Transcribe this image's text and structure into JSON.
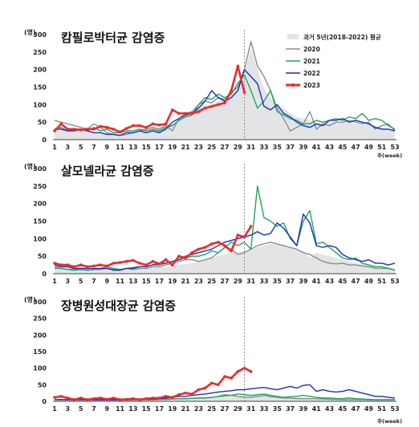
{
  "figure": {
    "x_axis_unit": "주(week)",
    "legend": {
      "baseline": "과거 5년(2018-2022) 평균",
      "s2020": "2020",
      "s2021": "2021",
      "s2022": "2022",
      "s2023": "2023"
    }
  },
  "chart_data": [
    {
      "type": "line",
      "title": "캄필로박터균 감염증",
      "ylabel": "(명)",
      "ylim": [
        0,
        300
      ],
      "yticks": [
        0,
        50,
        100,
        150,
        200,
        250,
        300
      ],
      "xticks": [
        1,
        3,
        5,
        7,
        9,
        11,
        13,
        15,
        17,
        19,
        21,
        23,
        25,
        27,
        29,
        31,
        33,
        35,
        37,
        39,
        41,
        43,
        45,
        47,
        49,
        51,
        53
      ],
      "current_week_marker": 30,
      "legend_position": "top-right",
      "colors": {
        "baseline": "#e3e4e6",
        "s2020": "#8c8c8c",
        "s2021": "#1fa65a",
        "s2022": "#1a2fbf",
        "s2023": "#ee2a2a"
      },
      "baseline": [
        25,
        30,
        28,
        30,
        28,
        25,
        20,
        18,
        18,
        17,
        18,
        20,
        22,
        25,
        22,
        30,
        35,
        45,
        45,
        55,
        70,
        80,
        95,
        100,
        100,
        110,
        115,
        130,
        150,
        190,
        260,
        200,
        145,
        120,
        100,
        90,
        75,
        65,
        60,
        55,
        50,
        50,
        50,
        50,
        50,
        50,
        45,
        42,
        45,
        40,
        35,
        30,
        25
      ],
      "series": [
        {
          "name": "2020",
          "values": [
            55,
            50,
            45,
            40,
            35,
            30,
            45,
            35,
            20,
            15,
            12,
            15,
            20,
            25,
            30,
            35,
            30,
            40,
            25,
            60,
            75,
            80,
            100,
            110,
            105,
            120,
            115,
            135,
            150,
            200,
            280,
            210,
            180,
            140,
            90,
            60,
            25,
            35,
            45,
            80,
            30,
            45,
            40,
            50,
            50,
            55,
            50,
            45,
            50,
            30,
            40,
            45,
            25
          ]
        },
        {
          "name": "2021",
          "values": [
            30,
            35,
            25,
            30,
            30,
            25,
            35,
            25,
            30,
            20,
            20,
            25,
            25,
            30,
            25,
            30,
            25,
            35,
            40,
            55,
            65,
            70,
            100,
            120,
            115,
            130,
            120,
            130,
            160,
            185,
            140,
            90,
            110,
            140,
            80,
            70,
            60,
            55,
            45,
            45,
            55,
            50,
            55,
            60,
            55,
            65,
            60,
            75,
            55,
            60,
            55,
            40,
            30
          ]
        },
        {
          "name": "2022",
          "values": [
            30,
            30,
            25,
            25,
            30,
            25,
            20,
            20,
            15,
            15,
            12,
            20,
            20,
            25,
            20,
            25,
            20,
            30,
            50,
            60,
            70,
            75,
            90,
            110,
            140,
            120,
            110,
            120,
            140,
            200,
            180,
            160,
            95,
            85,
            100,
            75,
            65,
            50,
            40,
            35,
            45,
            40,
            55,
            55,
            60,
            50,
            55,
            50,
            45,
            35,
            30,
            30,
            25
          ]
        },
        {
          "name": "2023",
          "values": [
            25,
            45,
            30,
            30,
            28,
            30,
            30,
            38,
            35,
            30,
            22,
            32,
            40,
            40,
            35,
            45,
            42,
            45,
            85,
            75,
            75,
            75,
            80,
            90,
            95,
            100,
            105,
            140,
            210,
            135
          ]
        }
      ]
    },
    {
      "type": "line",
      "title": "살모넬라균 감염증",
      "ylabel": "(명)",
      "ylim": [
        0,
        300
      ],
      "yticks": [
        0,
        50,
        100,
        150,
        200,
        250,
        300
      ],
      "xticks": [
        1,
        3,
        5,
        7,
        9,
        11,
        13,
        15,
        17,
        19,
        21,
        23,
        25,
        27,
        29,
        31,
        33,
        35,
        37,
        39,
        41,
        43,
        45,
        47,
        49,
        51,
        53
      ],
      "current_week_marker": 30,
      "colors": {
        "baseline": "#e3e4e6",
        "s2020": "#8c8c8c",
        "s2021": "#1fa65a",
        "s2022": "#1a2fbf",
        "s2023": "#ee2a2a"
      },
      "baseline": [
        20,
        20,
        18,
        18,
        18,
        17,
        17,
        16,
        16,
        15,
        15,
        16,
        16,
        17,
        18,
        18,
        20,
        20,
        22,
        25,
        28,
        30,
        35,
        40,
        45,
        50,
        55,
        60,
        62,
        65,
        70,
        75,
        80,
        85,
        85,
        82,
        75,
        70,
        65,
        45,
        60,
        55,
        50,
        45,
        40,
        35,
        30,
        28,
        25,
        22,
        20,
        18,
        15
      ],
      "series": [
        {
          "name": "2020",
          "values": [
            15,
            15,
            12,
            12,
            12,
            10,
            12,
            12,
            15,
            12,
            12,
            15,
            12,
            15,
            15,
            20,
            20,
            25,
            30,
            35,
            40,
            40,
            35,
            40,
            45,
            60,
            75,
            70,
            55,
            60,
            70,
            80,
            85,
            90,
            85,
            80,
            75,
            70,
            60,
            55,
            45,
            35,
            30,
            28,
            30,
            25,
            25,
            22,
            20,
            15,
            15,
            15,
            10
          ]
        },
        {
          "name": "2021",
          "values": [
            20,
            15,
            12,
            10,
            12,
            10,
            12,
            15,
            20,
            15,
            12,
            15,
            18,
            20,
            20,
            25,
            25,
            30,
            35,
            40,
            45,
            50,
            50,
            55,
            65,
            60,
            75,
            90,
            80,
            90,
            70,
            250,
            160,
            150,
            135,
            145,
            100,
            80,
            150,
            180,
            85,
            90,
            75,
            60,
            45,
            40,
            45,
            30,
            25,
            20,
            20,
            15,
            10
          ]
        },
        {
          "name": "2022",
          "values": [
            25,
            20,
            20,
            15,
            15,
            15,
            15,
            15,
            15,
            10,
            10,
            15,
            15,
            20,
            20,
            25,
            30,
            30,
            35,
            40,
            50,
            55,
            60,
            65,
            70,
            80,
            90,
            95,
            100,
            105,
            110,
            120,
            110,
            115,
            145,
            130,
            105,
            80,
            170,
            145,
            80,
            75,
            80,
            75,
            55,
            45,
            40,
            35,
            40,
            30,
            30,
            25,
            30
          ]
        },
        {
          "name": "2023",
          "values": [
            30,
            25,
            25,
            20,
            25,
            20,
            22,
            25,
            22,
            30,
            32,
            35,
            38,
            30,
            25,
            35,
            28,
            40,
            25,
            50,
            45,
            60,
            70,
            75,
            85,
            90,
            80,
            65,
            110,
            105,
            135
          ]
        }
      ]
    },
    {
      "type": "line",
      "title": "장병원성대장균 감염증",
      "ylabel": "(명)",
      "ylim": [
        0,
        300
      ],
      "yticks": [
        0,
        50,
        100,
        150,
        200,
        250,
        300
      ],
      "xticks": [
        1,
        3,
        5,
        7,
        9,
        11,
        13,
        15,
        17,
        19,
        21,
        23,
        25,
        27,
        29,
        31,
        33,
        35,
        37,
        39,
        41,
        43,
        45,
        47,
        49,
        51,
        53
      ],
      "current_week_marker": 30,
      "colors": {
        "baseline": "#e3e4e6",
        "s2020": "#8c8c8c",
        "s2021": "#1fa65a",
        "s2022": "#1a2fbf",
        "s2023": "#ee2a2a"
      },
      "baseline": [
        5,
        5,
        4,
        4,
        4,
        4,
        4,
        4,
        4,
        4,
        4,
        4,
        4,
        4,
        5,
        5,
        5,
        6,
        6,
        7,
        7,
        8,
        8,
        9,
        10,
        10,
        12,
        14,
        15,
        18,
        20,
        18,
        16,
        15,
        14,
        13,
        12,
        12,
        11,
        10,
        10,
        9,
        9,
        8,
        8,
        7,
        7,
        6,
        6,
        5,
        5,
        5,
        5
      ],
      "series": [
        {
          "name": "2020",
          "values": [
            5,
            5,
            4,
            4,
            4,
            4,
            4,
            4,
            4,
            4,
            4,
            4,
            5,
            5,
            5,
            6,
            6,
            7,
            7,
            8,
            8,
            9,
            10,
            10,
            12,
            15,
            20,
            18,
            15,
            12,
            12,
            15,
            18,
            14,
            12,
            10,
            10,
            8,
            8,
            8,
            8,
            7,
            6,
            6,
            5,
            5,
            5,
            5,
            4,
            4,
            4,
            4,
            4
          ]
        },
        {
          "name": "2021",
          "values": [
            5,
            5,
            5,
            5,
            4,
            4,
            4,
            4,
            4,
            4,
            4,
            4,
            5,
            5,
            5,
            5,
            6,
            6,
            7,
            8,
            8,
            9,
            10,
            10,
            12,
            14,
            16,
            18,
            22,
            20,
            18,
            20,
            22,
            18,
            15,
            12,
            14,
            15,
            18,
            15,
            12,
            10,
            10,
            8,
            8,
            10,
            8,
            7,
            6,
            5,
            5,
            5,
            5
          ]
        },
        {
          "name": "2022",
          "values": [
            5,
            5,
            5,
            5,
            5,
            5,
            4,
            4,
            4,
            4,
            4,
            4,
            5,
            5,
            6,
            6,
            8,
            10,
            12,
            15,
            15,
            18,
            20,
            22,
            25,
            28,
            30,
            32,
            35,
            35,
            38,
            40,
            42,
            38,
            35,
            40,
            45,
            40,
            48,
            50,
            30,
            35,
            30,
            28,
            30,
            35,
            30,
            25,
            20,
            15,
            15,
            12,
            10
          ]
        },
        {
          "name": "2023",
          "values": [
            12,
            15,
            10,
            5,
            10,
            5,
            8,
            10,
            6,
            10,
            5,
            6,
            8,
            5,
            8,
            10,
            10,
            15,
            12,
            20,
            25,
            22,
            35,
            40,
            55,
            50,
            75,
            70,
            90,
            100,
            90
          ]
        }
      ]
    }
  ]
}
